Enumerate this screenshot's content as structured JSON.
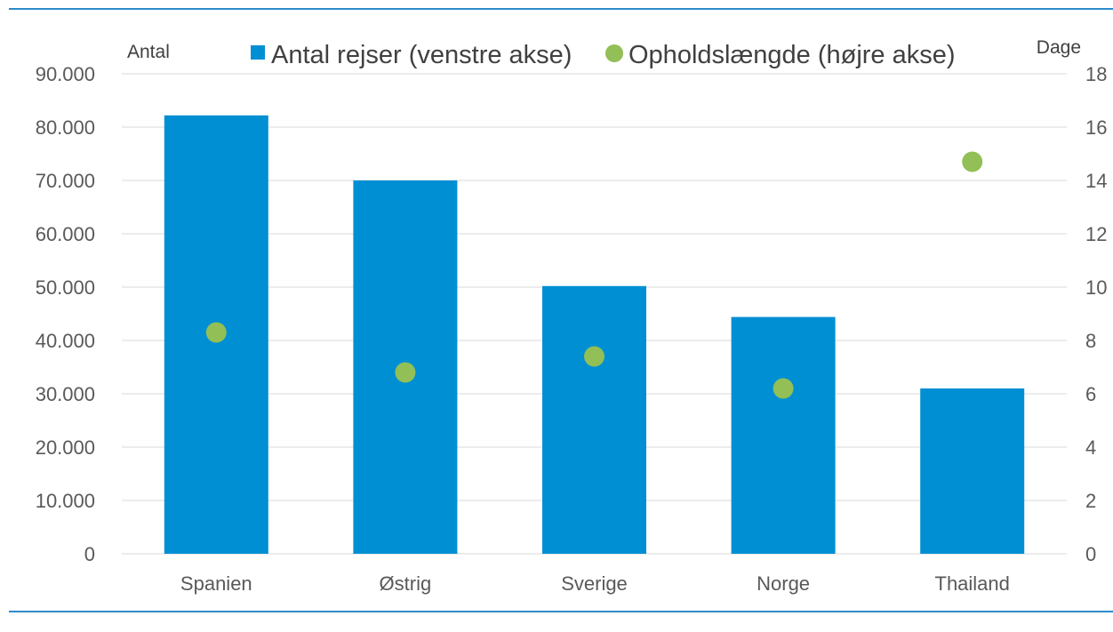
{
  "chart_data": {
    "type": "bar",
    "categories": [
      "Spanien",
      "Østrig",
      "Sverige",
      "Norge",
      "Thailand"
    ],
    "series": [
      {
        "name": "Antal rejser (venstre akse)",
        "type": "bar",
        "axis": "left",
        "color": "#008FD3",
        "values": [
          82200,
          70000,
          50200,
          44400,
          31000
        ]
      },
      {
        "name": "Opholdslængde (højre akse)",
        "type": "scatter",
        "axis": "right",
        "color": "#92BF56",
        "values": [
          8.3,
          6.8,
          7.4,
          6.2,
          14.7
        ]
      }
    ],
    "left_axis": {
      "unit_label": "Antal",
      "range": [
        0,
        90000
      ],
      "tick_labels": [
        "0",
        "10.000",
        "20.000",
        "30.000",
        "40.000",
        "50.000",
        "60.000",
        "70.000",
        "80.000",
        "90.000"
      ]
    },
    "right_axis": {
      "unit_label": "Dage",
      "range": [
        0,
        18
      ],
      "tick_labels": [
        "0",
        "2",
        "4",
        "6",
        "8",
        "10",
        "12",
        "14",
        "16",
        "18"
      ]
    },
    "grid": true,
    "legend_position": "top",
    "frame_color": "#2E8BC9",
    "grid_color": "#D9D9D9"
  }
}
